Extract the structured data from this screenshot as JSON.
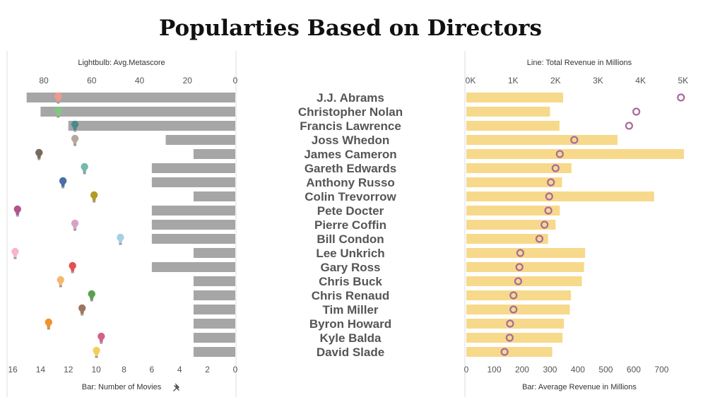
{
  "title": "Popularties Based on Directors",
  "chart_data": [
    {
      "type": "bar",
      "panel": "left",
      "top_axis_title": "Lightbulb: Avg.Metascore",
      "bottom_axis_title": "Bar: Number of Movies",
      "pin_icon": "pin-icon",
      "top_ticks": [
        "80",
        "60",
        "40",
        "20",
        "0"
      ],
      "top_tick_values": [
        80,
        60,
        40,
        20,
        0
      ],
      "bottom_ticks": [
        "16",
        "14",
        "12",
        "10",
        "8",
        "6",
        "4",
        "2",
        "0"
      ],
      "bottom_tick_values": [
        16,
        14,
        12,
        10,
        8,
        6,
        4,
        2,
        0
      ],
      "xlim_bar": [
        0,
        16
      ],
      "xlim_metascore": [
        0,
        93
      ],
      "reversed": true,
      "bar_color": "#a6a6a6",
      "bar_values": [
        15,
        14,
        12,
        5,
        3,
        6,
        6,
        3,
        6,
        6,
        6,
        3,
        6,
        3,
        3,
        3,
        3,
        3,
        3
      ],
      "metascore_values": [
        74,
        74,
        67,
        67,
        82,
        63,
        72,
        59,
        91,
        67,
        48,
        92,
        68,
        73,
        60,
        64,
        78,
        56,
        58
      ],
      "bulb_colors": [
        "#f29a8e",
        "#7fc97f",
        "#4b8a8c",
        "#b4a89c",
        "#7a6a5c",
        "#78b7ab",
        "#4a6fa5",
        "#b59a25",
        "#b0568c",
        "#d5a3c8",
        "#a6cfe8",
        "#f7b6cc",
        "#e05252",
        "#f4b770",
        "#59a14f",
        "#9c755f",
        "#f0922e",
        "#d3618c",
        "#f2cf5b"
      ]
    },
    {
      "type": "bar",
      "panel": "right",
      "top_axis_title": "Line: Total Revenue in Millions",
      "bottom_axis_title": "Bar: Average Revenue in Millions",
      "top_ticks": [
        "0K",
        "1K",
        "2K",
        "3K",
        "4K",
        "5K"
      ],
      "top_tick_values": [
        0,
        1000,
        2000,
        3000,
        4000,
        5000
      ],
      "bottom_ticks": [
        "0",
        "100",
        "200",
        "300",
        "400",
        "500",
        "600",
        "700"
      ],
      "bottom_tick_values": [
        0,
        100,
        200,
        300,
        400,
        500,
        600,
        700
      ],
      "xlim_bar": [
        0,
        780
      ],
      "xlim_total": [
        0,
        5120
      ],
      "bar_color": "#f6d98a",
      "ring_color": "#a86b9c",
      "avg_revenue": [
        347,
        300,
        334,
        542,
        780,
        377,
        343,
        673,
        335,
        320,
        293,
        426,
        422,
        414,
        375,
        371,
        350,
        345,
        308
      ],
      "total_revenue": [
        5050,
        4000,
        3830,
        2540,
        2200,
        2100,
        1990,
        1950,
        1930,
        1840,
        1720,
        1270,
        1250,
        1220,
        1110,
        1110,
        1030,
        1020,
        900
      ]
    }
  ],
  "directors": [
    "J.J. Abrams",
    "Christopher Nolan",
    "Francis Lawrence",
    "Joss Whedon",
    "James Cameron",
    "Gareth Edwards",
    "Anthony Russo",
    "Colin Trevorrow",
    "Pete Docter",
    "Pierre Coffin",
    "Bill Condon",
    "Lee Unkrich",
    "Gary Ross",
    "Chris Buck",
    "Chris Renaud",
    "Tim Miller",
    "Byron Howard",
    "Kyle Balda",
    "David Slade"
  ]
}
